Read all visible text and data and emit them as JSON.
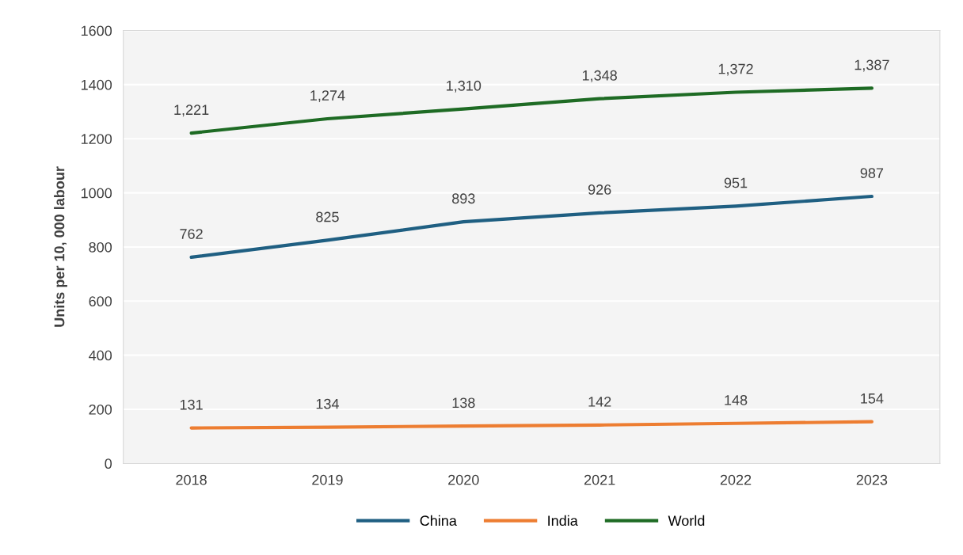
{
  "chart_data": {
    "type": "line",
    "ylabel": "Units per 10, 000 labour",
    "categories": [
      "2018",
      "2019",
      "2020",
      "2021",
      "2022",
      "2023"
    ],
    "series": [
      {
        "name": "China",
        "color": "#1f5f82",
        "values": [
          762,
          825,
          893,
          926,
          951,
          987
        ],
        "value_labels": [
          "762",
          "825",
          "893",
          "926",
          "951",
          "987"
        ]
      },
      {
        "name": "India",
        "color": "#ed7d31",
        "values": [
          131,
          134,
          138,
          142,
          148,
          154
        ],
        "value_labels": [
          "131",
          "134",
          "138",
          "142",
          "148",
          "154"
        ]
      },
      {
        "name": "World",
        "color": "#1e6b24",
        "values": [
          1221,
          1274,
          1310,
          1348,
          1372,
          1387
        ],
        "value_labels": [
          "1,221",
          "1,274",
          "1,310",
          "1,348",
          "1,372",
          "1,387"
        ]
      }
    ],
    "ylim": [
      0,
      1600
    ],
    "yticks": [
      0,
      200,
      400,
      600,
      800,
      1000,
      1200,
      1400,
      1600
    ],
    "grid": "y",
    "legend": "bottom",
    "marker": "none",
    "line_style": "solid"
  }
}
